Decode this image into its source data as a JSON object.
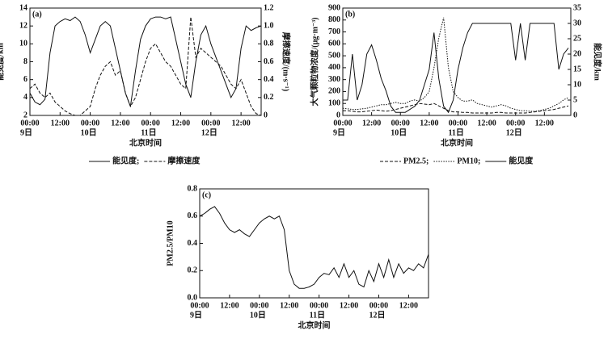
{
  "chart_data": [
    {
      "type": "line",
      "title": "(a)",
      "x_label": "北京时间",
      "y_label": "能见度/km",
      "y2_label": "摩擦速度/(m·s⁻¹)",
      "legend": true,
      "legend_separator": ";",
      "xlim": [
        0,
        92
      ],
      "xticks": [
        {
          "value": 0,
          "label": "00:00"
        },
        {
          "value": 12,
          "label": "12:00"
        },
        {
          "value": 24,
          "label": "00:00"
        },
        {
          "value": 36,
          "label": "12:00"
        },
        {
          "value": 48,
          "label": "00:00"
        },
        {
          "value": 60,
          "label": "12:00"
        },
        {
          "value": 72,
          "label": "00:00"
        },
        {
          "value": 84,
          "label": "12:00"
        }
      ],
      "day_labels": [
        {
          "value": 0,
          "label": "9日"
        },
        {
          "value": 24,
          "label": "10日"
        },
        {
          "value": 48,
          "label": "11日"
        },
        {
          "value": 72,
          "label": "12日"
        }
      ],
      "ylim": [
        2,
        14
      ],
      "yticks": [
        2,
        4,
        6,
        8,
        10,
        12,
        14
      ],
      "y2lim": [
        0,
        1.2
      ],
      "y2ticks": [
        0,
        0.2,
        0.4,
        0.6,
        0.8,
        {
          "value": 1,
          "label": "1.0"
        },
        1.2
      ],
      "x": [
        0,
        2,
        4,
        6,
        8,
        10,
        12,
        14,
        16,
        18,
        20,
        22,
        24,
        26,
        28,
        30,
        32,
        34,
        36,
        38,
        40,
        42,
        44,
        46,
        48,
        50,
        52,
        54,
        56,
        58,
        60,
        62,
        64,
        66,
        68,
        70,
        72,
        74,
        76,
        78,
        80,
        82,
        84,
        86,
        88,
        90,
        92
      ],
      "series": [
        {
          "name": "能见度",
          "color": "#111111",
          "style": "solid",
          "values": [
            4.5,
            3.5,
            3.2,
            3.8,
            9,
            12,
            12.5,
            12.8,
            12.6,
            13,
            12.5,
            11,
            9,
            10.5,
            12,
            12.5,
            12,
            9.5,
            7,
            4.5,
            3,
            7,
            10.5,
            12,
            12.8,
            13,
            13,
            12.8,
            13,
            10.5,
            8,
            5.5,
            4,
            8,
            11,
            12,
            10,
            8.5,
            7,
            5.5,
            4,
            5,
            9.5,
            12,
            11.5,
            11.8,
            12
          ]
        },
        {
          "name": "摩擦速度",
          "color": "#111111",
          "style": "dashed",
          "axis": "y2",
          "values": [
            0.3,
            0.35,
            0.25,
            0.2,
            0.25,
            0.15,
            0.1,
            0.05,
            0.02,
            0,
            0,
            0.05,
            0.1,
            0.3,
            0.45,
            0.55,
            0.6,
            0.45,
            0.5,
            0.25,
            0.1,
            0.2,
            0.4,
            0.6,
            0.75,
            0.8,
            0.7,
            0.6,
            0.55,
            0.45,
            0.35,
            0.3,
            1.1,
            0.65,
            0.75,
            0.7,
            0.65,
            0.6,
            0.55,
            0.45,
            0.35,
            0.3,
            0.4,
            0.25,
            0.1,
            0.02,
            0
          ]
        }
      ]
    },
    {
      "type": "line",
      "title": "(b)",
      "x_label": "北京时间",
      "y_label": "大气颗粒物浓度/(μg·m⁻³)",
      "y2_label": "能见度/km",
      "legend": true,
      "legend_separator": ";",
      "xlim": [
        0,
        95
      ],
      "xticks": [
        {
          "value": 0,
          "label": "00:00"
        },
        {
          "value": 12,
          "label": "12:00"
        },
        {
          "value": 24,
          "label": "00:00"
        },
        {
          "value": 36,
          "label": "12:00"
        },
        {
          "value": 48,
          "label": "00:00"
        },
        {
          "value": 60,
          "label": "12:00"
        },
        {
          "value": 72,
          "label": "00:00"
        },
        {
          "value": 84,
          "label": "12:00"
        }
      ],
      "day_labels": [
        {
          "value": 0,
          "label": "9日"
        },
        {
          "value": 24,
          "label": "10日"
        },
        {
          "value": 48,
          "label": "11日"
        },
        {
          "value": 72,
          "label": "12日"
        }
      ],
      "ylim": [
        0,
        900
      ],
      "yticks": [
        0,
        100,
        200,
        300,
        400,
        500,
        600,
        700,
        800,
        900
      ],
      "y2lim": [
        0,
        35
      ],
      "y2ticks": [
        0,
        5,
        10,
        15,
        20,
        25,
        30,
        35
      ],
      "x": [
        0,
        2,
        4,
        6,
        8,
        10,
        12,
        14,
        16,
        18,
        20,
        22,
        24,
        26,
        28,
        30,
        32,
        34,
        36,
        38,
        40,
        42,
        44,
        46,
        48,
        50,
        52,
        54,
        56,
        58,
        60,
        62,
        64,
        66,
        68,
        70,
        72,
        74,
        76,
        78,
        80,
        82,
        84,
        86,
        88,
        90,
        92,
        94
      ],
      "series": [
        {
          "name": "PM2.5",
          "color": "#111111",
          "style": "dashed",
          "values": [
            40,
            40,
            35,
            30,
            30,
            35,
            40,
            45,
            40,
            35,
            40,
            50,
            60,
            70,
            80,
            90,
            100,
            95,
            90,
            100,
            80,
            60,
            40,
            30,
            30,
            25,
            25,
            20,
            20,
            20,
            20,
            20,
            25,
            25,
            20,
            20,
            20,
            20,
            20,
            25,
            30,
            35,
            40,
            45,
            50,
            60,
            70,
            80
          ]
        },
        {
          "name": "PM10",
          "color": "#111111",
          "style": "dotted",
          "values": [
            60,
            55,
            50,
            50,
            55,
            60,
            70,
            80,
            90,
            90,
            100,
            110,
            100,
            100,
            120,
            130,
            120,
            150,
            200,
            400,
            650,
            820,
            400,
            200,
            150,
            120,
            120,
            130,
            100,
            90,
            80,
            70,
            80,
            90,
            80,
            60,
            50,
            40,
            40,
            35,
            35,
            40,
            50,
            60,
            80,
            100,
            130,
            150
          ]
        },
        {
          "name": "能见度",
          "color": "#111111",
          "style": "solid",
          "axis": "y2",
          "values": [
            5,
            5,
            20,
            5,
            10,
            20,
            23,
            18,
            12,
            8,
            3,
            1,
            1,
            1,
            2,
            3,
            5,
            10,
            15,
            27,
            12,
            3,
            1,
            5,
            15,
            22,
            27,
            30,
            30,
            30,
            30,
            30,
            30,
            30,
            30,
            30,
            18,
            30,
            18,
            30,
            30,
            30,
            30,
            30,
            30,
            15,
            20,
            22
          ]
        }
      ]
    },
    {
      "type": "line",
      "title": "(c)",
      "x_label": "北京时间",
      "y_label": "PM2.5/PM10",
      "legend": false,
      "xlim": [
        0,
        92
      ],
      "xticks": [
        {
          "value": 0,
          "label": "00:00"
        },
        {
          "value": 12,
          "label": "12:00"
        },
        {
          "value": 24,
          "label": "00:00"
        },
        {
          "value": 36,
          "label": "12:00"
        },
        {
          "value": 48,
          "label": "00:00"
        },
        {
          "value": 60,
          "label": "12:00"
        },
        {
          "value": 72,
          "label": "00:00"
        },
        {
          "value": 84,
          "label": "12:00"
        }
      ],
      "day_labels": [
        {
          "value": 0,
          "label": "9日"
        },
        {
          "value": 24,
          "label": "10日"
        },
        {
          "value": 48,
          "label": "11日"
        },
        {
          "value": 72,
          "label": "12日"
        }
      ],
      "ylim": [
        0,
        0.8
      ],
      "yticks": [
        {
          "value": 0,
          "label": "0.0"
        },
        0.2,
        0.4,
        0.6,
        0.8
      ],
      "x": [
        0,
        2,
        4,
        6,
        8,
        10,
        12,
        14,
        16,
        18,
        20,
        22,
        24,
        26,
        28,
        30,
        32,
        34,
        36,
        38,
        40,
        42,
        44,
        46,
        48,
        50,
        52,
        54,
        56,
        58,
        60,
        62,
        64,
        66,
        68,
        70,
        72,
        74,
        76,
        78,
        80,
        82,
        84,
        86,
        88,
        90,
        92
      ],
      "series": [
        {
          "name": "PM2.5/PM10",
          "color": "#111111",
          "style": "solid",
          "values": [
            0.6,
            0.62,
            0.65,
            0.67,
            0.62,
            0.55,
            0.5,
            0.48,
            0.5,
            0.47,
            0.45,
            0.5,
            0.55,
            0.58,
            0.6,
            0.58,
            0.6,
            0.5,
            0.2,
            0.1,
            0.07,
            0.07,
            0.08,
            0.1,
            0.15,
            0.18,
            0.17,
            0.22,
            0.15,
            0.25,
            0.15,
            0.2,
            0.1,
            0.08,
            0.2,
            0.12,
            0.25,
            0.15,
            0.28,
            0.15,
            0.25,
            0.18,
            0.22,
            0.2,
            0.25,
            0.22,
            0.32
          ]
        }
      ]
    }
  ]
}
